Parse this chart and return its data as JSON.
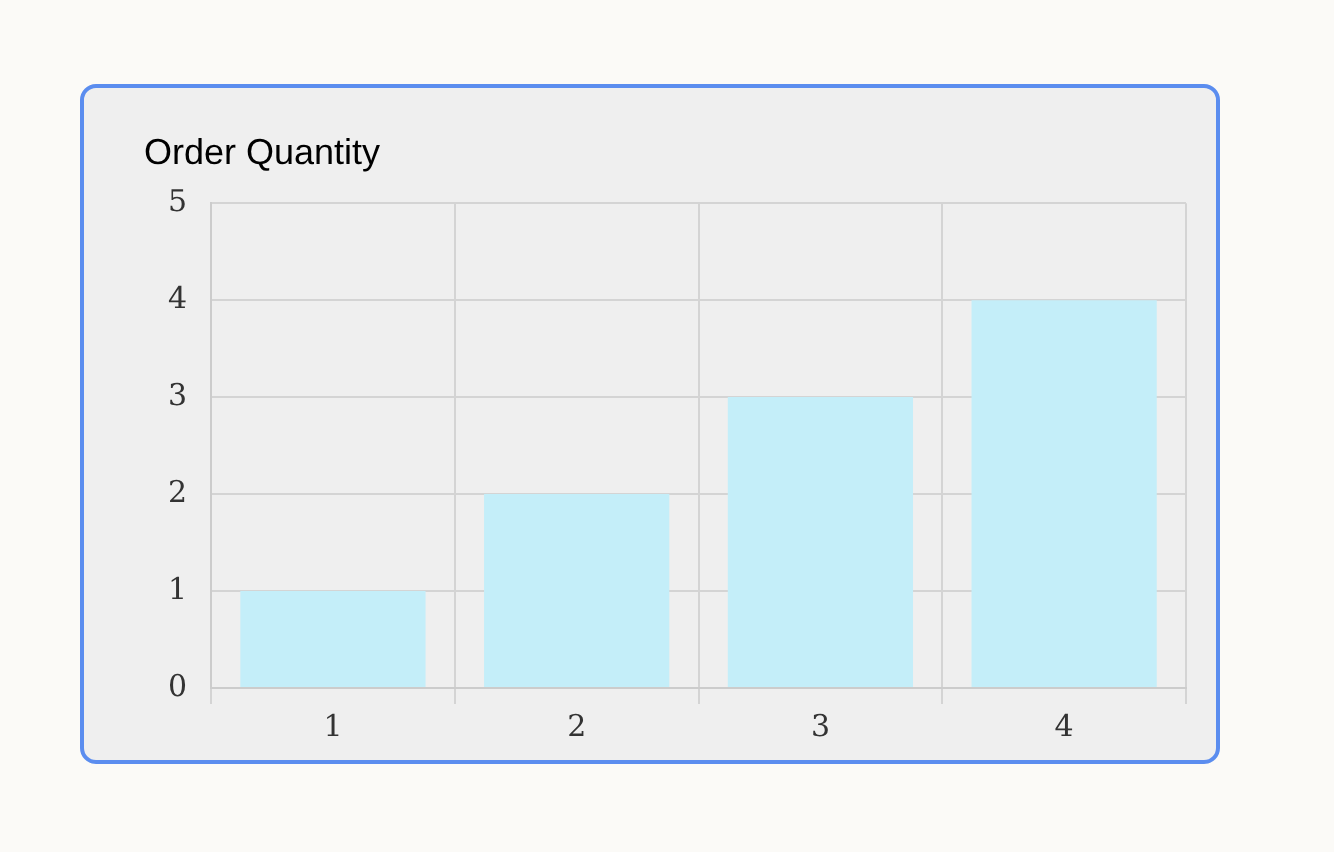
{
  "chart_data": {
    "type": "bar",
    "title": "Order Quantity",
    "categories": [
      "1",
      "2",
      "3",
      "4"
    ],
    "series": [
      {
        "color": "#c4eef9",
        "values": [
          1,
          2,
          3,
          4
        ]
      }
    ],
    "ylim": [
      0,
      5
    ],
    "yticks": [
      0,
      1,
      2,
      3,
      4,
      5
    ],
    "grid": true,
    "legend": false
  }
}
